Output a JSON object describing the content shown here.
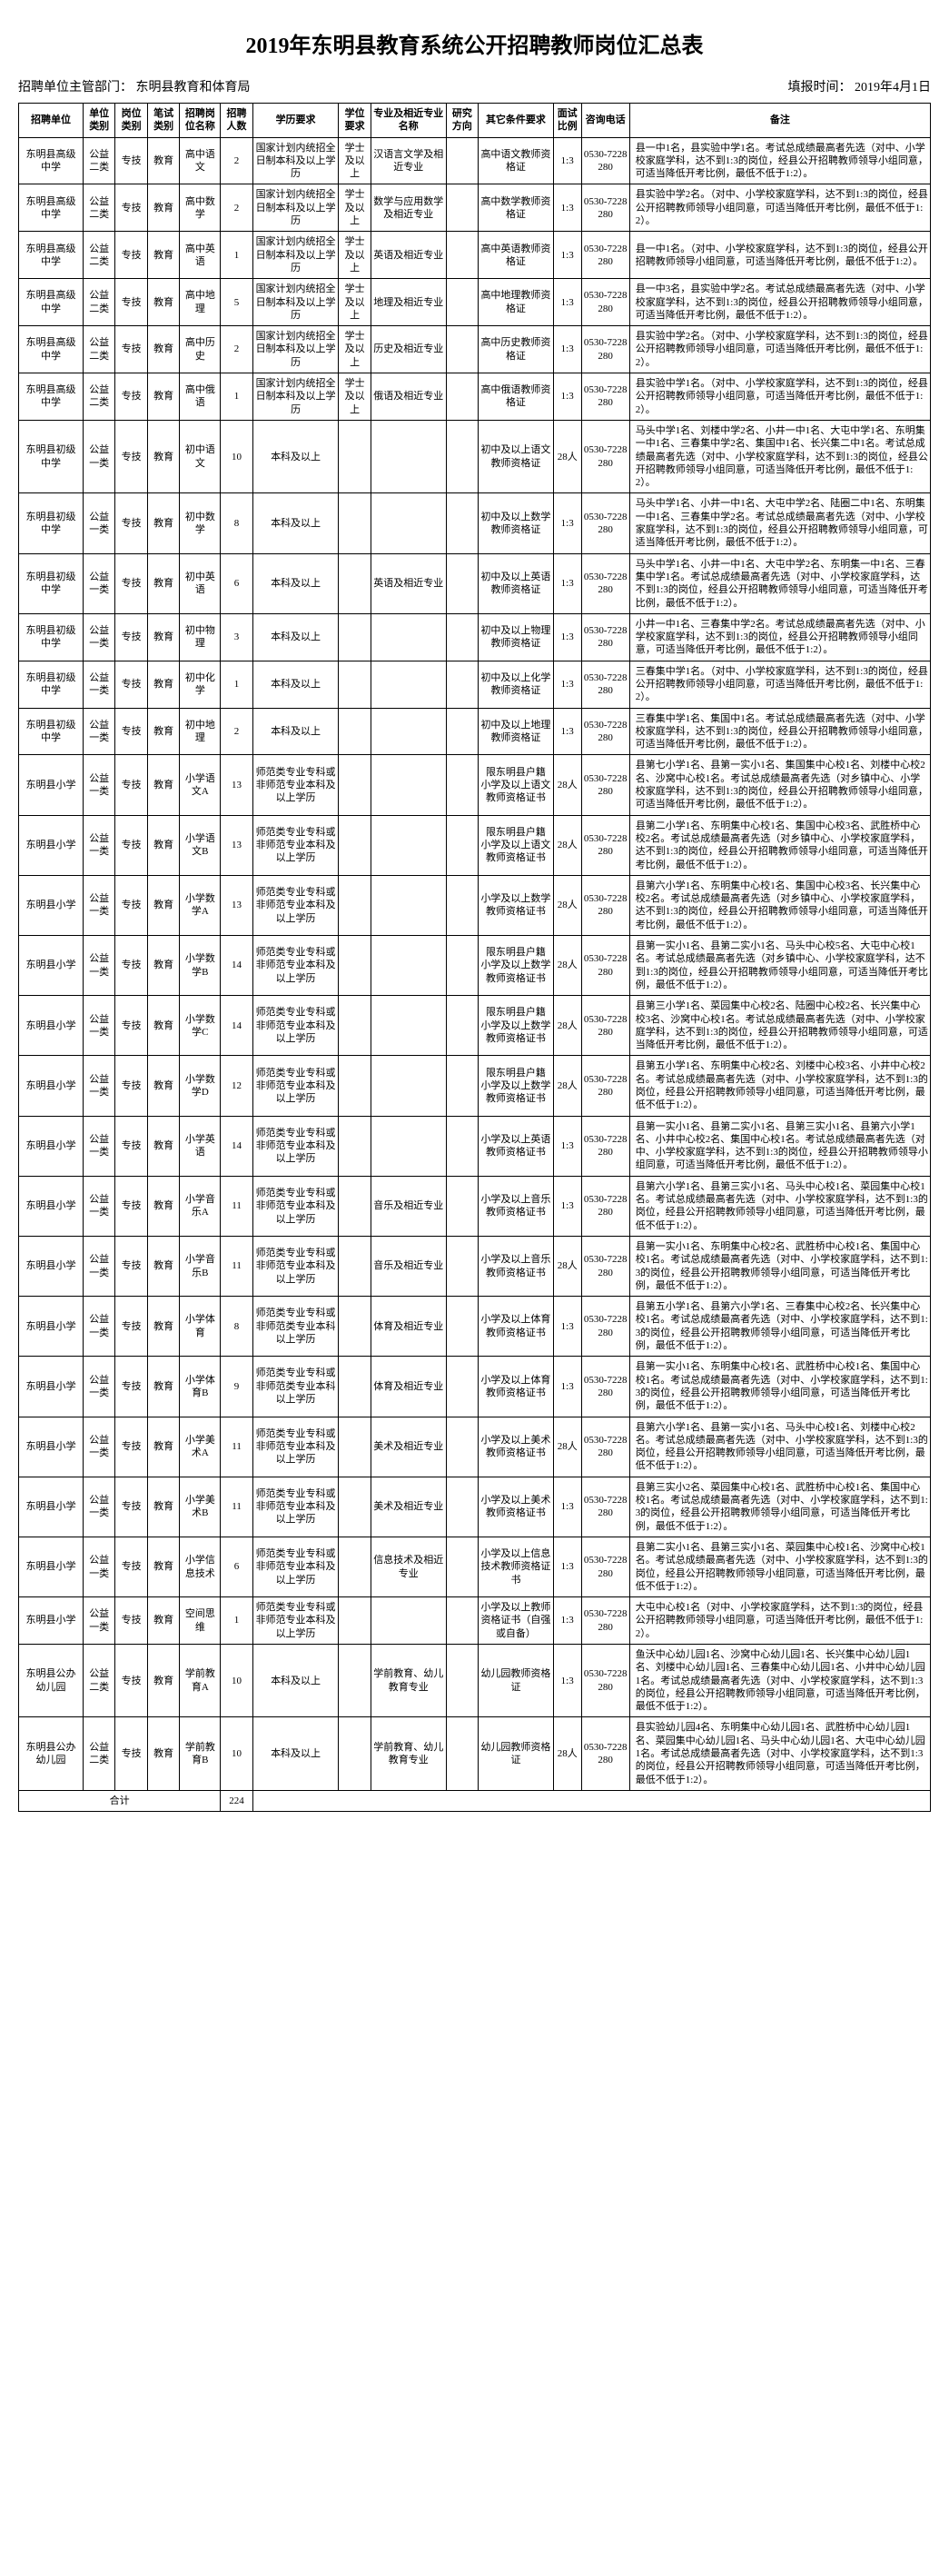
{
  "title": "2019年东明县教育系统公开招聘教师岗位汇总表",
  "meta": {
    "left_label": "招聘单位主管部门：",
    "left_value": "东明县教育和体育局",
    "right_label": "填报时间：",
    "right_value": "2019年4月1日"
  },
  "headers": [
    "招聘单位",
    "单位类别",
    "岗位类别",
    "笔试类别",
    "招聘岗位名称",
    "招聘人数",
    "学历要求",
    "学位要求",
    "专业及相近专业名称",
    "研究方向",
    "其它条件要求",
    "面试比例",
    "咨询电话",
    "备注"
  ],
  "total_label": "合计",
  "total_value": "224",
  "rows": [
    {
      "unit": "东明县高级中学",
      "utype": "公益二类",
      "ptype": "专技",
      "exam": "教育",
      "pname": "高中语文",
      "num": "2",
      "edu": "国家计划内统招全日制本科及以上学历",
      "deg": "学士及以上",
      "major": "汉语言文学及相近专业",
      "dir": "",
      "other": "高中语文教师资格证",
      "ratio": "1:3",
      "phone": "0530-7228280",
      "remark": "县一中1名，县实验中学1名。考试总成绩最高者先选（对中、小学校家庭学科，达不到1:3的岗位，经县公开招聘教师领导小组同意，可适当降低开考比例，最低不低于1:2）。"
    },
    {
      "unit": "东明县高级中学",
      "utype": "公益二类",
      "ptype": "专技",
      "exam": "教育",
      "pname": "高中数学",
      "num": "2",
      "edu": "国家计划内统招全日制本科及以上学历",
      "deg": "学士及以上",
      "major": "数学与应用数学及相近专业",
      "dir": "",
      "other": "高中数学教师资格证",
      "ratio": "1:3",
      "phone": "0530-7228280",
      "remark": "县实验中学2名。（对中、小学校家庭学科，达不到1:3的岗位，经县公开招聘教师领导小组同意，可适当降低开考比例，最低不低于1:2）。"
    },
    {
      "unit": "东明县高级中学",
      "utype": "公益二类",
      "ptype": "专技",
      "exam": "教育",
      "pname": "高中英语",
      "num": "1",
      "edu": "国家计划内统招全日制本科及以上学历",
      "deg": "学士及以上",
      "major": "英语及相近专业",
      "dir": "",
      "other": "高中英语教师资格证",
      "ratio": "1:3",
      "phone": "0530-7228280",
      "remark": "县一中1名。（对中、小学校家庭学科，达不到1:3的岗位，经县公开招聘教师领导小组同意，可适当降低开考比例，最低不低于1:2）。"
    },
    {
      "unit": "东明县高级中学",
      "utype": "公益二类",
      "ptype": "专技",
      "exam": "教育",
      "pname": "高中地理",
      "num": "5",
      "edu": "国家计划内统招全日制本科及以上学历",
      "deg": "学士及以上",
      "major": "地理及相近专业",
      "dir": "",
      "other": "高中地理教师资格证",
      "ratio": "1:3",
      "phone": "0530-7228280",
      "remark": "县一中3名，县实验中学2名。考试总成绩最高者先选（对中、小学校家庭学科，达不到1:3的岗位，经县公开招聘教师领导小组同意，可适当降低开考比例，最低不低于1:2）。"
    },
    {
      "unit": "东明县高级中学",
      "utype": "公益二类",
      "ptype": "专技",
      "exam": "教育",
      "pname": "高中历史",
      "num": "2",
      "edu": "国家计划内统招全日制本科及以上学历",
      "deg": "学士及以上",
      "major": "历史及相近专业",
      "dir": "",
      "other": "高中历史教师资格证",
      "ratio": "1:3",
      "phone": "0530-7228280",
      "remark": "县实验中学2名。（对中、小学校家庭学科，达不到1:3的岗位，经县公开招聘教师领导小组同意，可适当降低开考比例，最低不低于1:2）。"
    },
    {
      "unit": "东明县高级中学",
      "utype": "公益二类",
      "ptype": "专技",
      "exam": "教育",
      "pname": "高中俄语",
      "num": "1",
      "edu": "国家计划内统招全日制本科及以上学历",
      "deg": "学士及以上",
      "major": "俄语及相近专业",
      "dir": "",
      "other": "高中俄语教师资格证",
      "ratio": "1:3",
      "phone": "0530-7228280",
      "remark": "县实验中学1名。（对中、小学校家庭学科，达不到1:3的岗位，经县公开招聘教师领导小组同意，可适当降低开考比例，最低不低于1:2）。"
    },
    {
      "unit": "东明县初级中学",
      "utype": "公益一类",
      "ptype": "专技",
      "exam": "教育",
      "pname": "初中语文",
      "num": "10",
      "edu": "本科及以上",
      "deg": "",
      "major": "",
      "dir": "",
      "other": "初中及以上语文教师资格证",
      "ratio": "28人",
      "phone": "0530-7228280",
      "remark": "马头中学1名、刘楼中学2名、小井一中1名、大屯中学1名、东明集一中1名、三春集中学2名、集国中1名、长兴集二中1名。考试总成绩最高者先选（对中、小学校家庭学科，达不到1:3的岗位，经县公开招聘教师领导小组同意，可适当降低开考比例，最低不低于1:2）。"
    },
    {
      "unit": "东明县初级中学",
      "utype": "公益一类",
      "ptype": "专技",
      "exam": "教育",
      "pname": "初中数学",
      "num": "8",
      "edu": "本科及以上",
      "deg": "",
      "major": "",
      "dir": "",
      "other": "初中及以上数学教师资格证",
      "ratio": "1:3",
      "phone": "0530-7228280",
      "remark": "马头中学1名、小井一中1名、大屯中学2名、陆圈二中1名、东明集一中1名、三春集中学2名。考试总成绩最高者先选（对中、小学校家庭学科，达不到1:3的岗位，经县公开招聘教师领导小组同意，可适当降低开考比例，最低不低于1:2）。"
    },
    {
      "unit": "东明县初级中学",
      "utype": "公益一类",
      "ptype": "专技",
      "exam": "教育",
      "pname": "初中英语",
      "num": "6",
      "edu": "本科及以上",
      "deg": "",
      "major": "英语及相近专业",
      "dir": "",
      "other": "初中及以上英语教师资格证",
      "ratio": "1:3",
      "phone": "0530-7228280",
      "remark": "马头中学1名、小井一中1名、大屯中学2名、东明集一中1名、三春集中学1名。考试总成绩最高者先选（对中、小学校家庭学科，达不到1:3的岗位，经县公开招聘教师领导小组同意，可适当降低开考比例，最低不低于1:2）。"
    },
    {
      "unit": "东明县初级中学",
      "utype": "公益一类",
      "ptype": "专技",
      "exam": "教育",
      "pname": "初中物理",
      "num": "3",
      "edu": "本科及以上",
      "deg": "",
      "major": "",
      "dir": "",
      "other": "初中及以上物理教师资格证",
      "ratio": "1:3",
      "phone": "0530-7228280",
      "remark": "小井一中1名、三春集中学2名。考试总成绩最高者先选（对中、小学校家庭学科，达不到1:3的岗位，经县公开招聘教师领导小组同意，可适当降低开考比例，最低不低于1:2）。"
    },
    {
      "unit": "东明县初级中学",
      "utype": "公益一类",
      "ptype": "专技",
      "exam": "教育",
      "pname": "初中化学",
      "num": "1",
      "edu": "本科及以上",
      "deg": "",
      "major": "",
      "dir": "",
      "other": "初中及以上化学教师资格证",
      "ratio": "1:3",
      "phone": "0530-7228280",
      "remark": "三春集中学1名。（对中、小学校家庭学科，达不到1:3的岗位，经县公开招聘教师领导小组同意，可适当降低开考比例，最低不低于1:2）。"
    },
    {
      "unit": "东明县初级中学",
      "utype": "公益一类",
      "ptype": "专技",
      "exam": "教育",
      "pname": "初中地理",
      "num": "2",
      "edu": "本科及以上",
      "deg": "",
      "major": "",
      "dir": "",
      "other": "初中及以上地理教师资格证",
      "ratio": "1:3",
      "phone": "0530-7228280",
      "remark": "三春集中学1名、集国中1名。考试总成绩最高者先选（对中、小学校家庭学科，达不到1:3的岗位，经县公开招聘教师领导小组同意，可适当降低开考比例，最低不低于1:2）。"
    },
    {
      "unit": "东明县小学",
      "utype": "公益一类",
      "ptype": "专技",
      "exam": "教育",
      "pname": "小学语文A",
      "num": "13",
      "edu": "师范类专业专科或非师范专业本科及以上学历",
      "deg": "",
      "major": "",
      "dir": "",
      "other": "限东明县户籍 小学及以上语文教师资格证书",
      "ratio": "28人",
      "phone": "0530-7228280",
      "remark": "县第七小学1名、县第一实小1名、集国集中心校1名、刘楼中心校2名、沙窝中心校1名。考试总成绩最高者先选（对乡镇中心、小学校家庭学科，达不到1:3的岗位，经县公开招聘教师领导小组同意，可适当降低开考比例，最低不低于1:2）。"
    },
    {
      "unit": "东明县小学",
      "utype": "公益一类",
      "ptype": "专技",
      "exam": "教育",
      "pname": "小学语文B",
      "num": "13",
      "edu": "师范类专业专科或非师范专业本科及以上学历",
      "deg": "",
      "major": "",
      "dir": "",
      "other": "限东明县户籍 小学及以上语文教师资格证书",
      "ratio": "28人",
      "phone": "0530-7228280",
      "remark": "县第二小学1名、东明集中心校1名、集国中心校3名、武胜桥中心校2名。考试总成绩最高者先选（对乡镇中心、小学校家庭学科，达不到1:3的岗位，经县公开招聘教师领导小组同意，可适当降低开考比例，最低不低于1:2）。"
    },
    {
      "unit": "东明县小学",
      "utype": "公益一类",
      "ptype": "专技",
      "exam": "教育",
      "pname": "小学数学A",
      "num": "13",
      "edu": "师范类专业专科或非师范专业本科及以上学历",
      "deg": "",
      "major": "",
      "dir": "",
      "other": "小学及以上数学教师资格证书",
      "ratio": "28人",
      "phone": "0530-7228280",
      "remark": "县第六小学1名、东明集中心校1名、集国中心校3名、长兴集中心校2名。考试总成绩最高者先选（对乡镇中心、小学校家庭学科，达不到1:3的岗位，经县公开招聘教师领导小组同意，可适当降低开考比例，最低不低于1:2）。"
    },
    {
      "unit": "东明县小学",
      "utype": "公益一类",
      "ptype": "专技",
      "exam": "教育",
      "pname": "小学数学B",
      "num": "14",
      "edu": "师范类专业专科或非师范专业本科及以上学历",
      "deg": "",
      "major": "",
      "dir": "",
      "other": "限东明县户籍 小学及以上数学教师资格证书",
      "ratio": "28人",
      "phone": "0530-7228280",
      "remark": "县第一实小1名、县第二实小1名、马头中心校5名、大屯中心校1名。考试总成绩最高者先选（对乡镇中心、小学校家庭学科，达不到1:3的岗位，经县公开招聘教师领导小组同意，可适当降低开考比例，最低不低于1:2）。"
    },
    {
      "unit": "东明县小学",
      "utype": "公益一类",
      "ptype": "专技",
      "exam": "教育",
      "pname": "小学数学C",
      "num": "14",
      "edu": "师范类专业专科或非师范专业本科及以上学历",
      "deg": "",
      "major": "",
      "dir": "",
      "other": "限东明县户籍 小学及以上数学教师资格证书",
      "ratio": "28人",
      "phone": "0530-7228280",
      "remark": "县第三小学1名、菜园集中心校2名、陆圈中心校2名、长兴集中心校3名、沙窝中心校1名。考试总成绩最高者先选（对中、小学校家庭学科，达不到1:3的岗位，经县公开招聘教师领导小组同意，可适当降低开考比例，最低不低于1:2）。"
    },
    {
      "unit": "东明县小学",
      "utype": "公益一类",
      "ptype": "专技",
      "exam": "教育",
      "pname": "小学数学D",
      "num": "12",
      "edu": "师范类专业专科或非师范专业本科及以上学历",
      "deg": "",
      "major": "",
      "dir": "",
      "other": "限东明县户籍 小学及以上数学教师资格证书",
      "ratio": "28人",
      "phone": "0530-7228280",
      "remark": "县第五小学1名、东明集中心校2名、刘楼中心校3名、小井中心校2名。考试总成绩最高者先选（对中、小学校家庭学科，达不到1:3的岗位，经县公开招聘教师领导小组同意，可适当降低开考比例，最低不低于1:2）。"
    },
    {
      "unit": "东明县小学",
      "utype": "公益一类",
      "ptype": "专技",
      "exam": "教育",
      "pname": "小学英语",
      "num": "14",
      "edu": "师范类专业专科或非师范专业本科及以上学历",
      "deg": "",
      "major": "",
      "dir": "",
      "other": "小学及以上英语教师资格证书",
      "ratio": "1:3",
      "phone": "0530-7228280",
      "remark": "县第一实小1名、县第二实小1名、县第三实小1名、县第六小学1名、小井中心校2名、集国中心校1名。考试总成绩最高者先选（对中、小学校家庭学科，达不到1:3的岗位，经县公开招聘教师领导小组同意，可适当降低开考比例，最低不低于1:2）。"
    },
    {
      "unit": "东明县小学",
      "utype": "公益一类",
      "ptype": "专技",
      "exam": "教育",
      "pname": "小学音乐A",
      "num": "11",
      "edu": "师范类专业专科或非师范专业本科及以上学历",
      "deg": "",
      "major": "音乐及相近专业",
      "dir": "",
      "other": "小学及以上音乐教师资格证书",
      "ratio": "1:3",
      "phone": "0530-7228280",
      "remark": "县第六小学1名、县第三实小1名、马头中心校1名、菜园集中心校1名。考试总成绩最高者先选（对中、小学校家庭学科，达不到1:3的岗位，经县公开招聘教师领导小组同意，可适当降低开考比例，最低不低于1:2）。"
    },
    {
      "unit": "东明县小学",
      "utype": "公益一类",
      "ptype": "专技",
      "exam": "教育",
      "pname": "小学音乐B",
      "num": "11",
      "edu": "师范类专业专科或非师范专业本科及以上学历",
      "deg": "",
      "major": "音乐及相近专业",
      "dir": "",
      "other": "小学及以上音乐教师资格证书",
      "ratio": "28人",
      "phone": "0530-7228280",
      "remark": "县第一实小1名、东明集中心校2名、武胜桥中心校1名、集国中心校1名。考试总成绩最高者先选（对中、小学校家庭学科，达不到1:3的岗位，经县公开招聘教师领导小组同意，可适当降低开考比例，最低不低于1:2）。"
    },
    {
      "unit": "东明县小学",
      "utype": "公益一类",
      "ptype": "专技",
      "exam": "教育",
      "pname": "小学体育",
      "num": "8",
      "edu": "师范类专业专科或非师范类专业本科以上学历",
      "deg": "",
      "major": "体育及相近专业",
      "dir": "",
      "other": "小学及以上体育教师资格证书",
      "ratio": "1:3",
      "phone": "0530-7228280",
      "remark": "县第五小学1名、县第六小学1名、三春集中心校2名、长兴集中心校1名。考试总成绩最高者先选（对中、小学校家庭学科，达不到1:3的岗位，经县公开招聘教师领导小组同意，可适当降低开考比例，最低不低于1:2）。"
    },
    {
      "unit": "东明县小学",
      "utype": "公益一类",
      "ptype": "专技",
      "exam": "教育",
      "pname": "小学体育B",
      "num": "9",
      "edu": "师范类专业专科或非师范类专业本科以上学历",
      "deg": "",
      "major": "体育及相近专业",
      "dir": "",
      "other": "小学及以上体育教师资格证书",
      "ratio": "1:3",
      "phone": "0530-7228280",
      "remark": "县第一实小1名、东明集中心校1名、武胜桥中心校1名、集国中心校1名。考试总成绩最高者先选（对中、小学校家庭学科，达不到1:3的岗位，经县公开招聘教师领导小组同意，可适当降低开考比例，最低不低于1:2）。"
    },
    {
      "unit": "东明县小学",
      "utype": "公益一类",
      "ptype": "专技",
      "exam": "教育",
      "pname": "小学美术A",
      "num": "11",
      "edu": "师范类专业专科或非师范专业本科及以上学历",
      "deg": "",
      "major": "美术及相近专业",
      "dir": "",
      "other": "小学及以上美术教师资格证书",
      "ratio": "28人",
      "phone": "0530-7228280",
      "remark": "县第六小学1名、县第一实小1名、马头中心校1名、刘楼中心校2名。考试总成绩最高者先选（对中、小学校家庭学科，达不到1:3的岗位，经县公开招聘教师领导小组同意，可适当降低开考比例，最低不低于1:2）。"
    },
    {
      "unit": "东明县小学",
      "utype": "公益一类",
      "ptype": "专技",
      "exam": "教育",
      "pname": "小学美术B",
      "num": "11",
      "edu": "师范类专业专科或非师范专业本科及以上学历",
      "deg": "",
      "major": "美术及相近专业",
      "dir": "",
      "other": "小学及以上美术教师资格证书",
      "ratio": "1:3",
      "phone": "0530-7228280",
      "remark": "县第三实小2名、菜园集中心校1名、武胜桥中心校1名、集国中心校1名。考试总成绩最高者先选（对中、小学校家庭学科，达不到1:3的岗位，经县公开招聘教师领导小组同意，可适当降低开考比例，最低不低于1:2）。"
    },
    {
      "unit": "东明县小学",
      "utype": "公益一类",
      "ptype": "专技",
      "exam": "教育",
      "pname": "小学信息技术",
      "num": "6",
      "edu": "师范类专业专科或非师范专业本科及以上学历",
      "deg": "",
      "major": "信息技术及相近专业",
      "dir": "",
      "other": "小学及以上信息技术教师资格证书",
      "ratio": "1:3",
      "phone": "0530-7228280",
      "remark": "县第二实小1名、县第三实小1名、菜园集中心校1名、沙窝中心校1名。考试总成绩最高者先选（对中、小学校家庭学科，达不到1:3的岗位，经县公开招聘教师领导小组同意，可适当降低开考比例，最低不低于1:2）。"
    },
    {
      "unit": "东明县小学",
      "utype": "公益一类",
      "ptype": "专技",
      "exam": "教育",
      "pname": "空间思维",
      "num": "1",
      "edu": "师范类专业专科或非师范专业本科及以上学历",
      "deg": "",
      "major": "",
      "dir": "",
      "other": "小学及以上教师资格证书（自强或自备）",
      "ratio": "1:3",
      "phone": "0530-7228280",
      "remark": "大屯中心校1名（对中、小学校家庭学科，达不到1:3的岗位，经县公开招聘教师领导小组同意，可适当降低开考比例，最低不低于1:2）。"
    },
    {
      "unit": "东明县公办幼儿园",
      "utype": "公益二类",
      "ptype": "专技",
      "exam": "教育",
      "pname": "学前教育A",
      "num": "10",
      "edu": "本科及以上",
      "deg": "",
      "major": "学前教育、幼儿教育专业",
      "dir": "",
      "other": "幼儿园教师资格证",
      "ratio": "1:3",
      "phone": "0530-7228280",
      "remark": "鱼沃中心幼儿园1名、沙窝中心幼儿园1名、长兴集中心幼儿园1名、刘楼中心幼儿园1名、三春集中心幼儿园1名、小井中心幼儿园1名。考试总成绩最高者先选（对中、小学校家庭学科，达不到1:3的岗位，经县公开招聘教师领导小组同意，可适当降低开考比例，最低不低于1:2）。"
    },
    {
      "unit": "东明县公办幼儿园",
      "utype": "公益二类",
      "ptype": "专技",
      "exam": "教育",
      "pname": "学前教育B",
      "num": "10",
      "edu": "本科及以上",
      "deg": "",
      "major": "学前教育、幼儿教育专业",
      "dir": "",
      "other": "幼儿园教师资格证",
      "ratio": "28人",
      "phone": "0530-7228280",
      "remark": "县实验幼儿园4名、东明集中心幼儿园1名、武胜桥中心幼儿园1名、菜园集中心幼儿园1名、马头中心幼儿园1名、大屯中心幼儿园1名。考试总成绩最高者先选（对中、小学校家庭学科，达不到1:3的岗位，经县公开招聘教师领导小组同意，可适当降低开考比例，最低不低于1:2）。"
    }
  ]
}
